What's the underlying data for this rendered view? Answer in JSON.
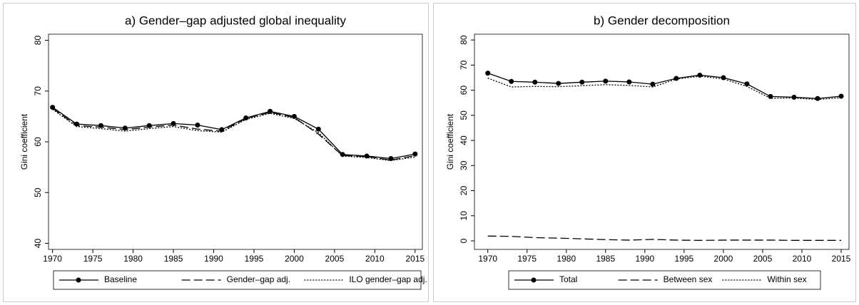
{
  "chart_data": [
    {
      "type": "line",
      "title": "a) Gender–gap adjusted global inequality",
      "y_label": "Gini coefficient",
      "x": [
        1970,
        1973,
        1976,
        1979,
        1982,
        1985,
        1988,
        1991,
        1994,
        1997,
        2000,
        2003,
        2006,
        2009,
        2012,
        2015
      ],
      "xlim": [
        1969.5,
        2015.9
      ],
      "xticks": [
        1970,
        1975,
        1980,
        1985,
        1990,
        1995,
        2000,
        2005,
        2010,
        2015
      ],
      "ylim": [
        38.8,
        81.2
      ],
      "yticks": [
        40,
        50,
        60,
        70,
        80
      ],
      "series": [
        {
          "name": "Baseline",
          "color": "#000000",
          "style": "solid",
          "markers": true,
          "values": [
            66.8,
            63.5,
            63.2,
            62.7,
            63.2,
            63.6,
            63.3,
            62.4,
            64.7,
            66.0,
            65.0,
            62.5,
            57.5,
            57.2,
            56.7,
            57.6
          ]
        },
        {
          "name": "Gender–gap adj.",
          "color": "#000000",
          "style": "dash",
          "markers": false,
          "values": [
            66.6,
            63.2,
            62.9,
            62.4,
            62.9,
            63.3,
            62.5,
            62.1,
            64.6,
            65.8,
            64.8,
            61.5,
            57.3,
            57.1,
            56.4,
            57.3
          ]
        },
        {
          "name": "ILO gender–gap adj.",
          "color": "#000000",
          "style": "dot",
          "markers": false,
          "values": [
            66.4,
            63.0,
            62.6,
            62.1,
            62.6,
            63.0,
            62.2,
            61.9,
            64.4,
            65.6,
            64.6,
            61.8,
            57.2,
            56.9,
            56.3,
            57.0
          ]
        }
      ]
    },
    {
      "type": "line",
      "title": "b) Gender decomposition",
      "y_label": "Gini coefficient",
      "x": [
        1970,
        1973,
        1976,
        1979,
        1982,
        1985,
        1988,
        1991,
        1994,
        1997,
        2000,
        2003,
        2006,
        2009,
        2012,
        2015
      ],
      "xlim": [
        1968.3,
        2016
      ],
      "xticks": [
        1970,
        1975,
        1980,
        1985,
        1990,
        1995,
        2000,
        2005,
        2010,
        2015
      ],
      "ylim": [
        -3.4,
        82.3
      ],
      "yticks": [
        0,
        10,
        20,
        30,
        40,
        50,
        60,
        70,
        80
      ],
      "series": [
        {
          "name": "Total",
          "color": "#000000",
          "style": "solid",
          "markers": true,
          "values": [
            66.8,
            63.5,
            63.2,
            62.7,
            63.2,
            63.6,
            63.3,
            62.4,
            64.7,
            66.0,
            65.0,
            62.5,
            57.5,
            57.2,
            56.7,
            57.6
          ]
        },
        {
          "name": "Between sex",
          "color": "#000000",
          "style": "dash",
          "markers": false,
          "values": [
            1.9,
            1.8,
            1.3,
            1.1,
            0.8,
            0.5,
            0.3,
            0.6,
            0.3,
            0.2,
            0.3,
            0.3,
            0.3,
            0.2,
            0.2,
            0.2
          ]
        },
        {
          "name": "Within sex",
          "color": "#000000",
          "style": "dot",
          "markers": false,
          "values": [
            64.8,
            61.3,
            61.5,
            61.4,
            61.8,
            62.2,
            61.9,
            61.3,
            64.4,
            65.6,
            64.5,
            61.5,
            56.8,
            56.9,
            56.3,
            57.0
          ]
        }
      ]
    }
  ]
}
